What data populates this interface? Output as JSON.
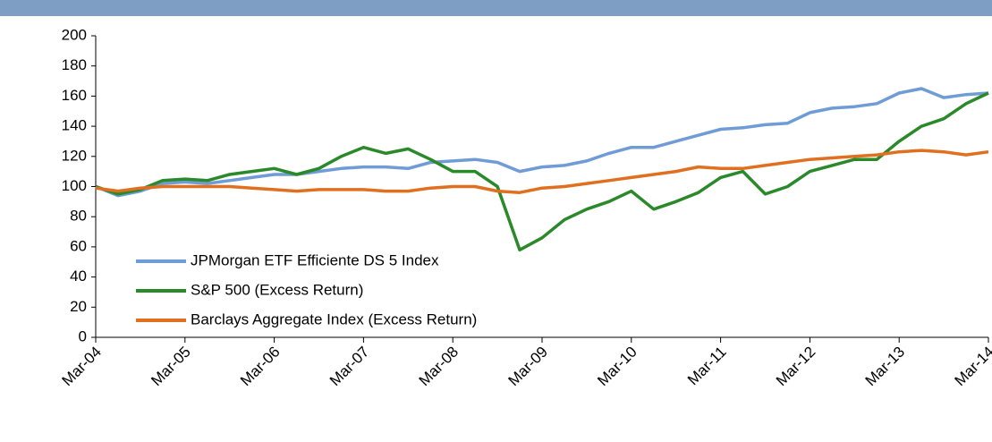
{
  "chart_data": {
    "type": "line",
    "categories": [
      "Mar-04",
      null,
      null,
      null,
      "Mar-05",
      null,
      null,
      null,
      "Mar-06",
      null,
      null,
      null,
      "Mar-07",
      null,
      null,
      null,
      "Mar-08",
      null,
      null,
      null,
      "Mar-09",
      null,
      null,
      null,
      "Mar-10",
      null,
      null,
      null,
      "Mar-11",
      null,
      null,
      null,
      "Mar-12",
      null,
      null,
      null,
      "Mar-13",
      null,
      null,
      null,
      "Mar-14"
    ],
    "series": [
      {
        "name": "JPMorgan ETF Efficiente DS 5 Index",
        "color": "#6f9bd6",
        "values": [
          100,
          94,
          97,
          102,
          103,
          102,
          104,
          106,
          108,
          108,
          110,
          112,
          113,
          113,
          112,
          116,
          117,
          118,
          116,
          110,
          113,
          114,
          117,
          122,
          126,
          126,
          130,
          134,
          138,
          139,
          141,
          142,
          149,
          152,
          153,
          155,
          162,
          165,
          159,
          161,
          162
        ]
      },
      {
        "name": "S&P 500 (Excess Return)",
        "color": "#2a8a2a",
        "values": [
          100,
          95,
          98,
          104,
          105,
          104,
          108,
          110,
          112,
          108,
          112,
          120,
          126,
          122,
          125,
          118,
          110,
          110,
          100,
          58,
          66,
          78,
          85,
          90,
          97,
          85,
          90,
          96,
          106,
          110,
          95,
          100,
          110,
          114,
          118,
          118,
          130,
          140,
          145,
          155,
          162
        ]
      },
      {
        "name": "Barclays Aggregate Index (Excess Return)",
        "color": "#e07020",
        "values": [
          99,
          97,
          99,
          100,
          100,
          100,
          100,
          99,
          98,
          97,
          98,
          98,
          98,
          97,
          97,
          99,
          100,
          100,
          97,
          96,
          99,
          100,
          102,
          104,
          106,
          108,
          110,
          113,
          112,
          112,
          114,
          116,
          118,
          119,
          120,
          121,
          123,
          124,
          123,
          121,
          123
        ]
      }
    ],
    "ylim": [
      0,
      200
    ],
    "yticks": [
      0,
      20,
      40,
      60,
      80,
      100,
      120,
      140,
      160,
      180,
      200
    ]
  }
}
